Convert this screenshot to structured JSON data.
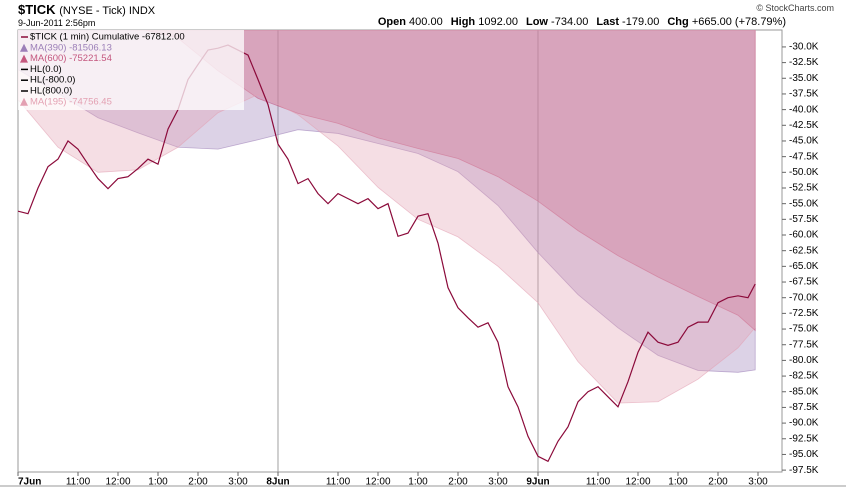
{
  "chart_data": {
    "type": "line",
    "title": "$TICK",
    "subtitle": "(NYSE - Tick) INDX",
    "date": "9-Jun-2011 2:56pm",
    "source": "© StockCharts.com",
    "quote": [
      {
        "label": "Open",
        "value": "400.00"
      },
      {
        "label": "High",
        "value": "1092.00"
      },
      {
        "label": "Low",
        "value": "-734.00"
      },
      {
        "label": "Last",
        "value": "-179.00"
      },
      {
        "label": "Chg",
        "value": "+665.00 (+78.79%)"
      }
    ],
    "xlim": [
      0,
      19.1
    ],
    "xticks": [
      {
        "value": 0,
        "label": "7Jun"
      },
      {
        "value": 1.5,
        "label": "11:00"
      },
      {
        "value": 2.5,
        "label": "12:00"
      },
      {
        "value": 3.5,
        "label": "1:00"
      },
      {
        "value": 4.5,
        "label": "2:00"
      },
      {
        "value": 5.5,
        "label": "3:00"
      },
      {
        "value": 6.5,
        "label": "8Jun"
      },
      {
        "value": 8,
        "label": "11:00"
      },
      {
        "value": 9,
        "label": "12:00"
      },
      {
        "value": 10,
        "label": "1:00"
      },
      {
        "value": 11,
        "label": "2:00"
      },
      {
        "value": 12,
        "label": "3:00"
      },
      {
        "value": 13,
        "label": "9Jun"
      },
      {
        "value": 14.5,
        "label": "11:00"
      },
      {
        "value": 15.5,
        "label": "12:00"
      },
      {
        "value": 16.5,
        "label": "1:00"
      },
      {
        "value": 17.5,
        "label": "2:00"
      },
      {
        "value": 18.5,
        "label": "3:00"
      }
    ],
    "separators": [
      6.5,
      13
    ],
    "ylim": [
      -97800,
      -27300
    ],
    "yticks": [
      {
        "value": -30000,
        "label": "-30.0K"
      },
      {
        "value": -32500,
        "label": "-32.5K"
      },
      {
        "value": -35000,
        "label": "-35.0K"
      },
      {
        "value": -37500,
        "label": "-37.5K"
      },
      {
        "value": -40000,
        "label": "-40.0K"
      },
      {
        "value": -42500,
        "label": "-42.5K"
      },
      {
        "value": -45000,
        "label": "-45.0K"
      },
      {
        "value": -47500,
        "label": "-47.5K"
      },
      {
        "value": -50000,
        "label": "-50.0K"
      },
      {
        "value": -52500,
        "label": "-52.5K"
      },
      {
        "value": -55000,
        "label": "-55.0K"
      },
      {
        "value": -57500,
        "label": "-57.5K"
      },
      {
        "value": -60000,
        "label": "-60.0K"
      },
      {
        "value": -62500,
        "label": "-62.5K"
      },
      {
        "value": -65000,
        "label": "-65.0K"
      },
      {
        "value": -67500,
        "label": "-67.5K"
      },
      {
        "value": -70000,
        "label": "-70.0K"
      },
      {
        "value": -72500,
        "label": "-72.5K"
      },
      {
        "value": -75000,
        "label": "-75.0K"
      },
      {
        "value": -77500,
        "label": "-77.5K"
      },
      {
        "value": -80000,
        "label": "-80.0K"
      },
      {
        "value": -82500,
        "label": "-82.5K"
      },
      {
        "value": -85000,
        "label": "-85.0K"
      },
      {
        "value": -87500,
        "label": "-87.5K"
      },
      {
        "value": -90000,
        "label": "-90.0K"
      },
      {
        "value": -92500,
        "label": "-92.5K"
      },
      {
        "value": -95000,
        "label": "-95.0K"
      },
      {
        "value": -97500,
        "label": "-97.5K"
      }
    ],
    "grid": false,
    "series": [
      {
        "name": "$TICK (1 min) Cumulative -67812.00",
        "kind": "line",
        "color": "#8b0a3a",
        "x": [
          0,
          0.25,
          0.5,
          0.75,
          1,
          1.25,
          1.5,
          1.75,
          2,
          2.25,
          2.5,
          2.75,
          3,
          3.25,
          3.5,
          3.75,
          4,
          4.25,
          4.5,
          4.75,
          5,
          5.25,
          5.5,
          5.75,
          6,
          6.25,
          6.5,
          6.75,
          7,
          7.25,
          7.5,
          7.75,
          8,
          8.25,
          8.5,
          8.75,
          9,
          9.25,
          9.5,
          9.75,
          10,
          10.25,
          10.5,
          10.75,
          11,
          11.25,
          11.5,
          11.75,
          12,
          12.25,
          12.5,
          12.75,
          13,
          13.25,
          13.5,
          13.75,
          14,
          14.25,
          14.5,
          14.75,
          15,
          15.25,
          15.5,
          15.75,
          16,
          16.25,
          16.5,
          16.75,
          17,
          17.25,
          17.5,
          17.75,
          18,
          18.25,
          18.43
        ],
        "values": [
          -56200,
          -56600,
          -52500,
          -49100,
          -47900,
          -45000,
          -46300,
          -48700,
          -51000,
          -52600,
          -51000,
          -50700,
          -49400,
          -47900,
          -48700,
          -43100,
          -40000,
          -35200,
          -32800,
          -30500,
          -30200,
          -29700,
          -30500,
          -31300,
          -35200,
          -39200,
          -45500,
          -47900,
          -51800,
          -51000,
          -53400,
          -55000,
          -53400,
          -54200,
          -55000,
          -54200,
          -55800,
          -55000,
          -60200,
          -59700,
          -57000,
          -56600,
          -61300,
          -68400,
          -71600,
          -73200,
          -74700,
          -74000,
          -77100,
          -84200,
          -87400,
          -92100,
          -95300,
          -96100,
          -92900,
          -90600,
          -86600,
          -85000,
          -84200,
          -85800,
          -87400,
          -83400,
          -78700,
          -75500,
          -77100,
          -77600,
          -77100,
          -74700,
          -73900,
          -73900,
          -70800,
          -70000,
          -69700,
          -70000,
          -67812
        ]
      },
      {
        "name": "MA(390) -81506.13",
        "kind": "area",
        "color": "#9c7fb8",
        "x": [
          0,
          1,
          2,
          3,
          4,
          5,
          6,
          7,
          8,
          9,
          10,
          11,
          12,
          13,
          14,
          15,
          16,
          17,
          18,
          18.43
        ],
        "values": [
          -33600,
          -37400,
          -41300,
          -43700,
          -46000,
          -46300,
          -44800,
          -43200,
          -43800,
          -45400,
          -47000,
          -49900,
          -55300,
          -62800,
          -69500,
          -74800,
          -79200,
          -81600,
          -81900,
          -81506
        ]
      },
      {
        "name": "MA(600) -75221.54",
        "kind": "area",
        "color": "#c4577e",
        "x": [
          0,
          1,
          2,
          3,
          4,
          5,
          6,
          7,
          8,
          9,
          10,
          11,
          12,
          13,
          14,
          15,
          16,
          17,
          18,
          18.43
        ],
        "values": [
          null,
          null,
          null,
          -27000,
          -28600,
          -33800,
          -38200,
          -40600,
          -42200,
          -44500,
          -46200,
          -47800,
          -50700,
          -54600,
          -59300,
          -63300,
          -66700,
          -69800,
          -72800,
          -75222
        ]
      },
      {
        "name": "MA(195) -74756.45",
        "kind": "area",
        "color": "#e3a0b2",
        "x": [
          0,
          1,
          2,
          3,
          4,
          5,
          6,
          7,
          8,
          9,
          10,
          11,
          12,
          13,
          14,
          15,
          16,
          17,
          18,
          18.43
        ],
        "values": [
          -38400,
          -46000,
          -50000,
          -49600,
          -46000,
          -40500,
          -37600,
          -40800,
          -45800,
          -52400,
          -57500,
          -60300,
          -65000,
          -70800,
          -80200,
          -86800,
          -86600,
          -83000,
          -78000,
          -74756
        ]
      }
    ],
    "reference_lines": [
      {
        "name": "HL(0.0)",
        "value": 0,
        "color": "#000000"
      },
      {
        "name": "HL(-800.0)",
        "value": -800,
        "color": "#000000"
      },
      {
        "name": "HL(800.0)",
        "value": 800,
        "color": "#000000"
      }
    ]
  }
}
